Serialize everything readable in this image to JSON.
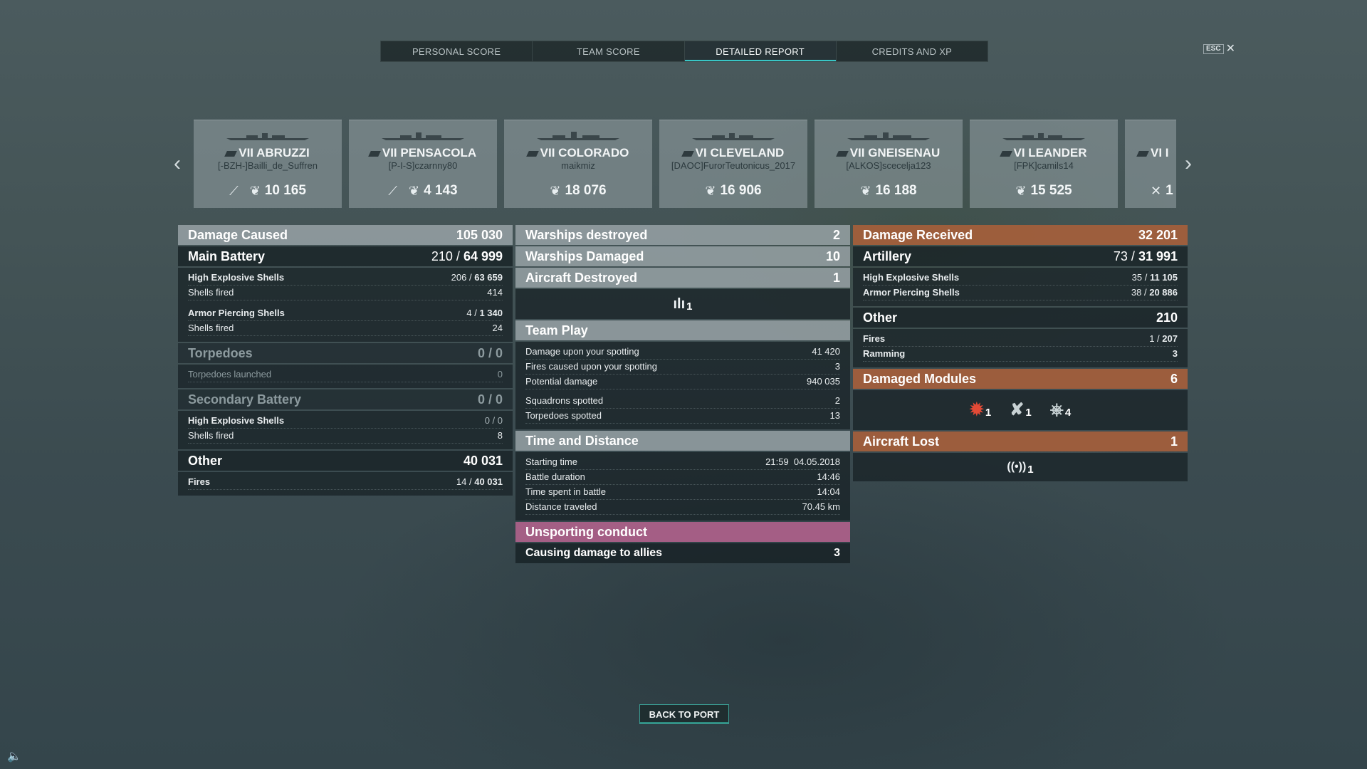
{
  "tabs": [
    {
      "label": "PERSONAL SCORE"
    },
    {
      "label": "TEAM SCORE"
    },
    {
      "label": "DETAILED REPORT"
    },
    {
      "label": "CREDITS AND XP"
    }
  ],
  "active_tab": "DETAILED REPORT",
  "esc_label": "ESC",
  "ships": [
    {
      "name": "VII ABRUZZI",
      "player": "[-BZH-]Bailli_de_Suffren",
      "score": "10 165"
    },
    {
      "name": "VII PENSACOLA",
      "player": "[P-I-S]czarnny80",
      "score": "4 143"
    },
    {
      "name": "VII COLORADO",
      "player": "maikmiz",
      "score": "18 076"
    },
    {
      "name": "VI CLEVELAND",
      "player": "[DAOC]FurorTeutonicus_2017",
      "score": "16 906"
    },
    {
      "name": "VII GNEISENAU",
      "player": "[ALKOS]scecelja123",
      "score": "16 188"
    },
    {
      "name": "VI LEANDER",
      "player": "[FPK]camils14",
      "score": "15 525"
    },
    {
      "name": "VI I",
      "player": "",
      "score": "1"
    }
  ],
  "damage_caused": {
    "title": "Damage Caused",
    "total": "105 030",
    "main_battery": {
      "label": "Main Battery",
      "hits": "210",
      "damage": "64 999",
      "he": {
        "label": "High Explosive Shells",
        "hits": "206",
        "damage": "63 659",
        "fired_label": "Shells fired",
        "fired": "414"
      },
      "ap": {
        "label": "Armor Piercing Shells",
        "hits": "4",
        "damage": "1 340",
        "fired_label": "Shells fired",
        "fired": "24"
      }
    },
    "torpedoes": {
      "label": "Torpedoes",
      "hits": "0",
      "damage": "0",
      "launched_label": "Torpedoes launched",
      "launched": "0"
    },
    "secondary": {
      "label": "Secondary Battery",
      "hits": "0",
      "damage": "0",
      "he": {
        "label": "High Explosive Shells",
        "hits": "0",
        "damage": "0",
        "fired_label": "Shells fired",
        "fired": "8"
      }
    },
    "other": {
      "label": "Other",
      "total": "40 031",
      "fires": {
        "label": "Fires",
        "hits": "14",
        "damage": "40 031"
      }
    }
  },
  "middle": {
    "warships_destroyed": {
      "label": "Warships destroyed",
      "value": "2"
    },
    "warships_damaged": {
      "label": "Warships Damaged",
      "value": "10"
    },
    "aircraft_destroyed": {
      "label": "Aircraft Destroyed",
      "value": "1",
      "icon_count": "1"
    },
    "team_play": {
      "title": "Team Play",
      "spotting_damage": {
        "label": "Damage upon your spotting",
        "value": "41 420"
      },
      "spotting_fires": {
        "label": "Fires caused upon your spotting",
        "value": "3"
      },
      "potential": {
        "label": "Potential damage",
        "value": "940 035"
      },
      "squadrons": {
        "label": "Squadrons spotted",
        "value": "2"
      },
      "torpedoes": {
        "label": "Torpedoes spotted",
        "value": "13"
      }
    },
    "time_distance": {
      "title": "Time and Distance",
      "start": {
        "label": "Starting time",
        "value": "21:59  04.05.2018"
      },
      "duration": {
        "label": "Battle duration",
        "value": "14:46"
      },
      "spent": {
        "label": "Time spent in battle",
        "value": "14:04"
      },
      "distance": {
        "label": "Distance traveled",
        "value": "70.45 km"
      }
    },
    "unsporting": {
      "title": "Unsporting conduct",
      "ally_damage": {
        "label": "Causing damage to allies",
        "value": "3"
      }
    }
  },
  "damage_received": {
    "title": "Damage Received",
    "total": "32 201",
    "artillery": {
      "label": "Artillery",
      "hits": "73",
      "damage": "31 991",
      "he": {
        "label": "High Explosive Shells",
        "hits": "35",
        "damage": "11 105"
      },
      "ap": {
        "label": "Armor Piercing Shells",
        "hits": "38",
        "damage": "20 886"
      }
    },
    "other": {
      "label": "Other",
      "total": "210",
      "fires": {
        "label": "Fires",
        "hits": "1",
        "damage": "207"
      },
      "ramming": {
        "label": "Ramming",
        "value": "3"
      }
    },
    "modules": {
      "label": "Damaged Modules",
      "total": "6",
      "items": [
        {
          "icon": "fire-module-icon",
          "count": "1"
        },
        {
          "icon": "gun-module-icon",
          "count": "1"
        },
        {
          "icon": "steering-module-icon",
          "count": "4"
        }
      ]
    },
    "aircraft_lost": {
      "label": "Aircraft Lost",
      "value": "1",
      "icon_count": "1"
    }
  },
  "back_button": "BACK TO PORT"
}
